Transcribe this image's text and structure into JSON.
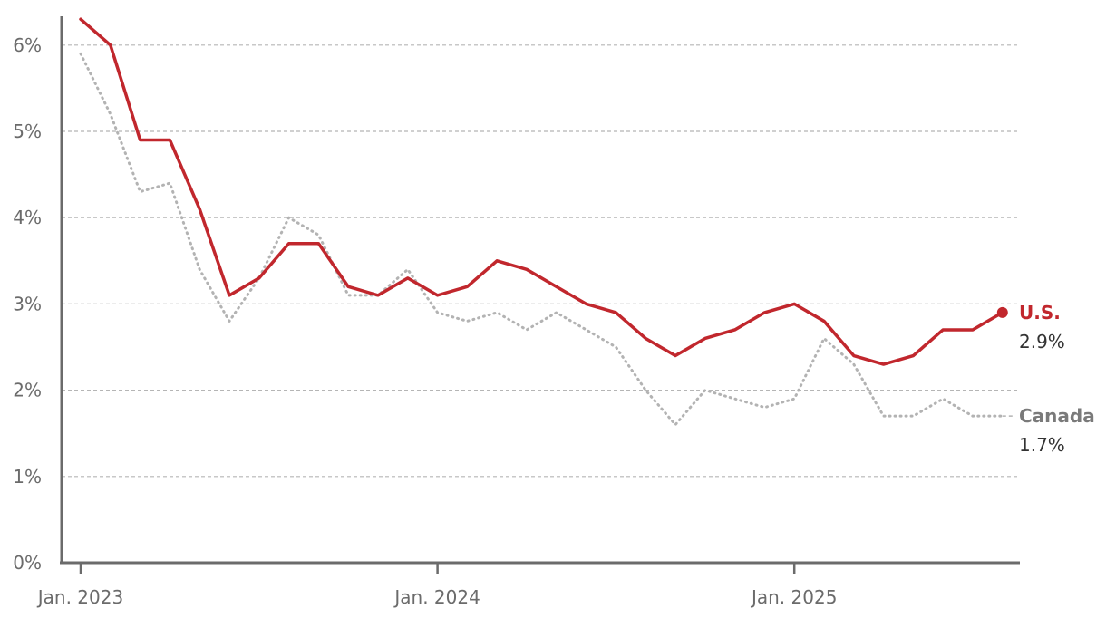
{
  "chart_data": {
    "type": "line",
    "y_unit": "%",
    "ylim": [
      0,
      6.3
    ],
    "yticks": [
      "0%",
      "1%",
      "2%",
      "3%",
      "4%",
      "5%",
      "6%"
    ],
    "x_tick_labels": [
      "Jan. 2023",
      "Jan. 2024",
      "Jan. 2025"
    ],
    "x": [
      "2023-01",
      "2023-02",
      "2023-03",
      "2023-04",
      "2023-05",
      "2023-06",
      "2023-07",
      "2023-08",
      "2023-09",
      "2023-10",
      "2023-11",
      "2023-12",
      "2024-01",
      "2024-02",
      "2024-03",
      "2024-04",
      "2024-05",
      "2024-06",
      "2024-07",
      "2024-08",
      "2024-09",
      "2024-10",
      "2024-11",
      "2024-12",
      "2025-01",
      "2025-02",
      "2025-03",
      "2025-04",
      "2025-05",
      "2025-06",
      "2025-07",
      "2025-08"
    ],
    "grid": true,
    "series": [
      {
        "name": "U.S.",
        "color": "#c1272d",
        "style": "solid",
        "end_label": "2.9%",
        "values": [
          6.3,
          6.0,
          4.9,
          4.9,
          4.1,
          3.1,
          3.3,
          3.7,
          3.7,
          3.2,
          3.1,
          3.3,
          3.1,
          3.2,
          3.5,
          3.4,
          3.2,
          3.0,
          2.9,
          2.6,
          2.4,
          2.6,
          2.7,
          2.9,
          3.0,
          2.8,
          2.4,
          2.3,
          2.4,
          2.7,
          2.7,
          2.9
        ]
      },
      {
        "name": "Canada",
        "color": "#b3b3b3",
        "style": "dotted",
        "end_label": "1.7%",
        "values": [
          5.9,
          5.2,
          4.3,
          4.4,
          3.4,
          2.8,
          3.3,
          4.0,
          3.8,
          3.1,
          3.1,
          3.4,
          2.9,
          2.8,
          2.9,
          2.7,
          2.9,
          2.7,
          2.5,
          2.0,
          1.6,
          2.0,
          1.9,
          1.8,
          1.9,
          2.6,
          2.3,
          1.7,
          1.7,
          1.9,
          1.7,
          1.7
        ]
      }
    ]
  }
}
